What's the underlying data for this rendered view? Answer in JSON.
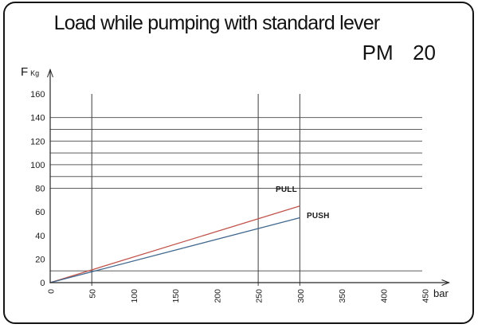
{
  "header": {
    "title": "Load while pumping with standard lever",
    "model": "PM  20"
  },
  "chart_data": {
    "type": "line",
    "title": "Load while pumping with standard lever",
    "model": "PM 20",
    "xlabel": "bar",
    "ylabel_main": "F",
    "ylabel_sub": "Kg",
    "xlim": [
      0,
      450
    ],
    "ylim": [
      0,
      160
    ],
    "x_ticks": [
      0,
      50,
      100,
      150,
      200,
      250,
      300,
      350,
      400,
      450
    ],
    "y_ticks": [
      0,
      20,
      40,
      60,
      80,
      100,
      120,
      140,
      160
    ],
    "h_gridlines": [
      10,
      80,
      90,
      100,
      110,
      120,
      130,
      140
    ],
    "v_gridlines": [
      50,
      250,
      300
    ],
    "grid_on": true,
    "legend_position": "inline-right-of-lines",
    "axis_color": "#262626",
    "grid_color_h": "#5f5f5f",
    "grid_color_v": "#3d3d3d",
    "series": [
      {
        "name": "PULL",
        "color": "#c0544c",
        "points": [
          [
            0,
            0
          ],
          [
            300,
            65
          ]
        ]
      },
      {
        "name": "PUSH",
        "color": "#41698f",
        "points": [
          [
            0,
            0
          ],
          [
            300,
            55
          ]
        ]
      }
    ]
  }
}
